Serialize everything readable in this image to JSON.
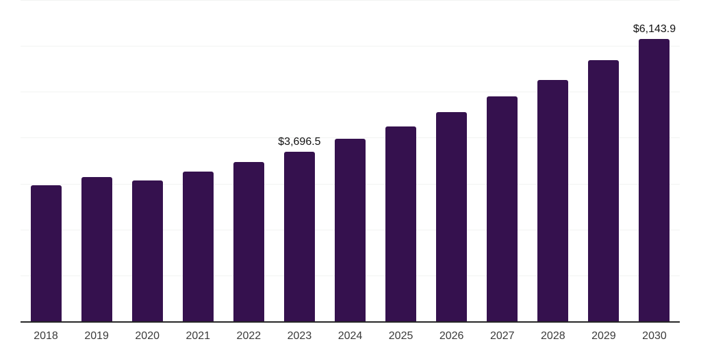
{
  "chart_data": {
    "type": "bar",
    "title": "",
    "categories": [
      "2018",
      "2019",
      "2020",
      "2021",
      "2022",
      "2023",
      "2024",
      "2025",
      "2026",
      "2027",
      "2028",
      "2029",
      "2030"
    ],
    "values": [
      2960,
      3140,
      3075,
      3260,
      3475,
      3696.5,
      3970,
      4240,
      4555,
      4900,
      5265,
      5685,
      6143.9
    ],
    "annotations": [
      {
        "category": "2023",
        "text": "$3,696.5"
      },
      {
        "category": "2030",
        "text": "$6,143.9"
      }
    ],
    "xlabel": "",
    "ylabel": "",
    "ylim": [
      0,
      7000
    ],
    "gridline_step": 1000,
    "grid": "horizontal",
    "legend": "none",
    "colors": {
      "bar": "#35114E",
      "axis_line": "#262626",
      "gridline": "#f2f3f2",
      "tick_label": "#3a3a3a",
      "data_label": "#111111",
      "background": "#ffffff"
    }
  }
}
